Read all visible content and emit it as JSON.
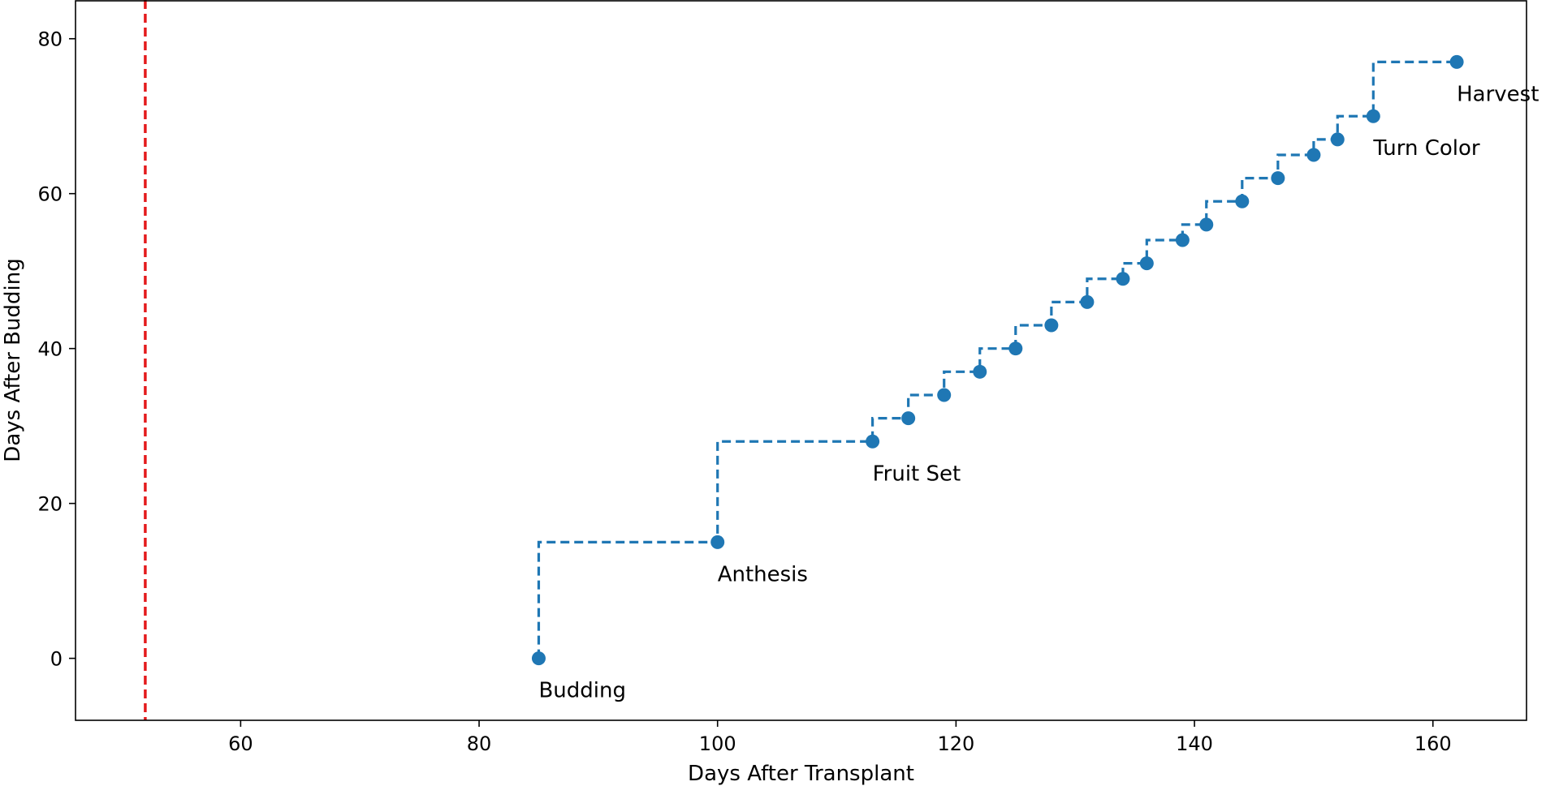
{
  "chart_data": {
    "type": "line",
    "xlabel": "Days After Transplant",
    "ylabel": "Days After Budding",
    "xlim": [
      46.15,
      167.85
    ],
    "ylim": [
      -8,
      85
    ],
    "xticks": [
      60,
      80,
      100,
      120,
      140,
      160
    ],
    "yticks": [
      0,
      20,
      40,
      60,
      80
    ],
    "reference_line": {
      "x": 52,
      "color": "#e41a1c",
      "style": "dashed"
    },
    "series": [
      {
        "color": "#1f77b4",
        "style": "step-post-dashed-with-markers",
        "x": [
          85,
          100,
          113,
          116,
          119,
          122,
          125,
          128,
          131,
          134,
          136,
          139,
          141,
          144,
          147,
          150,
          152,
          155,
          162
        ],
        "y": [
          0,
          15,
          28,
          31,
          34,
          37,
          40,
          43,
          46,
          49,
          51,
          54,
          56,
          59,
          62,
          65,
          67,
          70,
          77
        ]
      }
    ],
    "annotations": [
      {
        "text": "Budding",
        "x": 85,
        "y": 0
      },
      {
        "text": "Anthesis",
        "x": 100,
        "y": 15
      },
      {
        "text": "Fruit Set",
        "x": 113,
        "y": 28
      },
      {
        "text": "Turn Color",
        "x": 155,
        "y": 70
      },
      {
        "text": "Harvest",
        "x": 162,
        "y": 77
      }
    ],
    "grid": false
  }
}
